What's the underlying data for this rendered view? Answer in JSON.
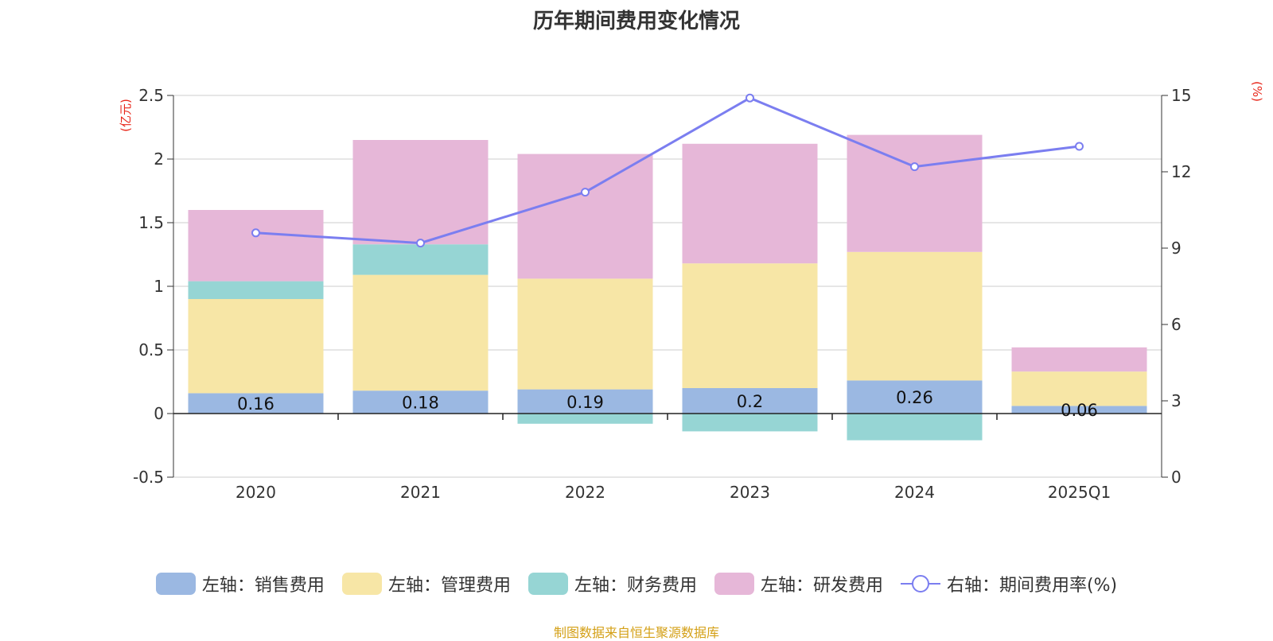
{
  "chart_data": {
    "type": "bar",
    "title": "历年期间费用变化情况",
    "categories": [
      "2020",
      "2021",
      "2022",
      "2023",
      "2024",
      "2025Q1"
    ],
    "left_axis": {
      "unit": "(亿元)",
      "ylim": [
        -0.5,
        2.5
      ],
      "ticks": [
        "2.5",
        "2",
        "1.5",
        "1",
        "0.5",
        "0",
        "-0.5"
      ]
    },
    "right_axis": {
      "unit": "(%)",
      "ylim": [
        0,
        15
      ],
      "ticks": [
        "15",
        "12",
        "9",
        "6",
        "3",
        "0"
      ]
    },
    "series": [
      {
        "name": "左轴：销售费用",
        "color": "#9bb8e2",
        "values": [
          0.16,
          0.18,
          0.19,
          0.2,
          0.26,
          0.06
        ],
        "labels": [
          "0.16",
          "0.18",
          "0.19",
          "0.2",
          "0.26",
          "0.06"
        ]
      },
      {
        "name": "左轴：管理费用",
        "color": "#f7e6a6",
        "values": [
          0.74,
          0.91,
          0.87,
          0.98,
          1.01,
          0.27
        ]
      },
      {
        "name": "左轴：财务费用",
        "color": "#96d5d4",
        "values": [
          0.14,
          0.24,
          -0.08,
          -0.14,
          -0.21,
          0.0
        ]
      },
      {
        "name": "左轴：研发费用",
        "color": "#e6b7d8",
        "values": [
          0.56,
          0.82,
          0.98,
          0.94,
          0.92,
          0.19
        ]
      }
    ],
    "line": {
      "name": "右轴：期间费用率(%)",
      "color": "#7b7ef0",
      "values": [
        9.6,
        9.2,
        11.2,
        14.9,
        12.2,
        13.0
      ]
    },
    "grid": true,
    "legend_position": "bottom-center"
  },
  "footer": "制图数据来自恒生聚源数据库"
}
